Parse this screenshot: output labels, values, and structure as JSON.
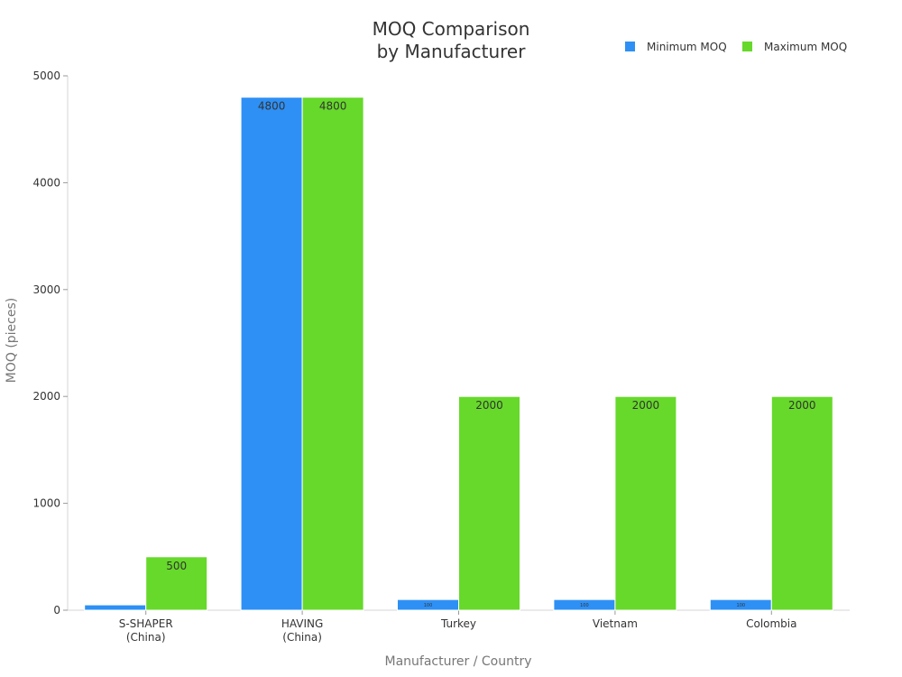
{
  "chart_data": {
    "type": "bar",
    "title_lines": [
      "MOQ Comparison",
      "by Manufacturer"
    ],
    "xlabel": "Manufacturer / Country",
    "ylabel": "MOQ (pieces)",
    "ylim": [
      0,
      5000
    ],
    "yticks": [
      0,
      1000,
      2000,
      3000,
      4000,
      5000
    ],
    "categories": [
      [
        "S-SHAPER",
        "(China)"
      ],
      [
        "HAVING",
        "(China)"
      ],
      [
        "Turkey"
      ],
      [
        "Vietnam"
      ],
      [
        "Colombia"
      ]
    ],
    "series": [
      {
        "name": "Minimum MOQ",
        "color": "#2e90f5",
        "values": [
          50,
          4800,
          100,
          100,
          100
        ],
        "labels": [
          "",
          "4800",
          "100",
          "100",
          "100"
        ]
      },
      {
        "name": "Maximum MOQ",
        "color": "#66d92a",
        "values": [
          500,
          4800,
          2000,
          2000,
          2000
        ],
        "labels": [
          "500",
          "4800",
          "2000",
          "2000",
          "2000"
        ]
      }
    ],
    "legend_position": "top-right",
    "grid": false
  }
}
